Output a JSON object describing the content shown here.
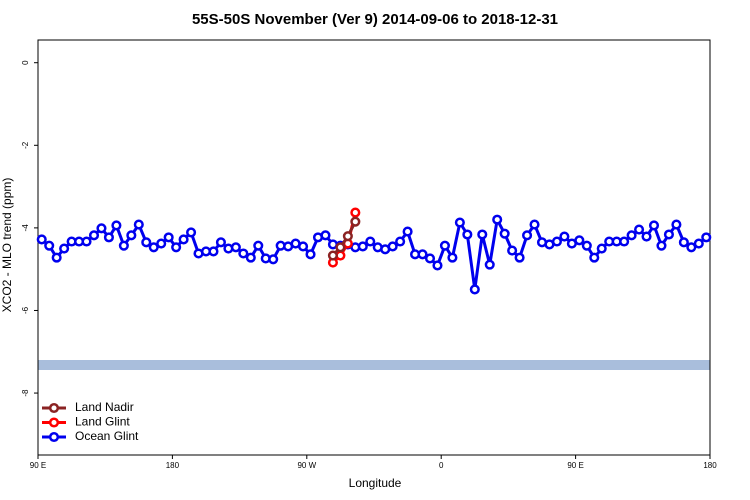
{
  "chart_data": {
    "type": "line",
    "title": "55S-50S November (Ver 9)   2014-09-06 to 2018-12-31",
    "x_label": "Longitude",
    "y_label": "XCO2 - MLO trend (ppm)",
    "xlim": [
      90,
      540
    ],
    "xticks": [
      {
        "value": 90,
        "label": "90 E"
      },
      {
        "value": 180,
        "label": "180"
      },
      {
        "value": 270,
        "label": "90 W"
      },
      {
        "value": 360,
        "label": "0"
      },
      {
        "value": 450,
        "label": "90 E"
      },
      {
        "value": 540,
        "label": "180"
      }
    ],
    "ylim": [
      -9.5,
      0.55
    ],
    "yticks": [
      0,
      -2,
      -4,
      -6,
      -8
    ],
    "legend": "bottom-left",
    "series": [
      {
        "name": "Land Nadir",
        "color": "#8b2323",
        "x": [
          287.5,
          292.5,
          297.5,
          302.5
        ],
        "values": [
          -4.67,
          -4.47,
          -4.2,
          -3.85
        ]
      },
      {
        "name": "Land Glint",
        "color": "#ff0000",
        "x": [
          287.5,
          292.5,
          297.5,
          302.5
        ],
        "values": [
          -4.84,
          -4.67,
          -4.38,
          -3.63
        ]
      },
      {
        "name": "Ocean Glint",
        "color": "#0000ee",
        "x": [
          92.5,
          97.5,
          102.5,
          107.5,
          112.5,
          117.5,
          122.5,
          127.5,
          132.5,
          137.5,
          142.5,
          147.5,
          152.5,
          157.5,
          162.5,
          167.5,
          172.5,
          177.5,
          182.5,
          187.5,
          192.5,
          197.5,
          202.5,
          207.5,
          212.5,
          217.5,
          222.5,
          227.5,
          232.5,
          237.5,
          242.5,
          247.5,
          252.5,
          257.5,
          262.5,
          267.5,
          272.5,
          277.5,
          282.5,
          287.5,
          292.5,
          297.5,
          302.5,
          307.5,
          312.5,
          317.5,
          322.5,
          327.5,
          332.5,
          337.5,
          342.5,
          347.5,
          352.5,
          357.5,
          362.5,
          367.5,
          372.5,
          377.5,
          382.5,
          387.5,
          392.5,
          397.5,
          402.5,
          407.5,
          412.5,
          417.5,
          422.5,
          427.5,
          432.5,
          437.5,
          442.5,
          447.5,
          452.5,
          457.5,
          462.5,
          467.5,
          472.5,
          477.5,
          482.5,
          487.5,
          492.5,
          497.5,
          502.5,
          507.5,
          512.5,
          517.5,
          522.5,
          527.5,
          532.5,
          537.5
        ],
        "values": [
          -4.28,
          -4.43,
          -4.72,
          -4.5,
          -4.33,
          -4.33,
          -4.33,
          -4.18,
          -4.01,
          -4.23,
          -3.94,
          -4.43,
          -4.18,
          -3.92,
          -4.35,
          -4.47,
          -4.38,
          -4.23,
          -4.47,
          -4.28,
          -4.11,
          -4.62,
          -4.57,
          -4.57,
          -4.35,
          -4.5,
          -4.47,
          -4.62,
          -4.72,
          -4.43,
          -4.74,
          -4.76,
          -4.43,
          -4.45,
          -4.38,
          -4.45,
          -4.64,
          -4.23,
          -4.18,
          -4.4,
          -4.43,
          -4.4,
          -4.47,
          -4.45,
          -4.33,
          -4.47,
          -4.52,
          -4.45,
          -4.33,
          -4.09,
          -4.64,
          -4.64,
          -4.74,
          -4.91,
          -4.43,
          -4.72,
          -3.87,
          -4.16,
          -5.49,
          -4.16,
          -4.89,
          -3.8,
          -4.14,
          -4.55,
          -4.72,
          -4.18,
          -3.92,
          -4.35,
          -4.4,
          -4.33,
          -4.21,
          -4.38,
          -4.3,
          -4.43,
          -4.72,
          -4.5,
          -4.33,
          -4.33,
          -4.33,
          -4.18,
          -4.04,
          -4.21,
          -3.94,
          -4.43,
          -4.16,
          -3.92,
          -4.35,
          -4.47,
          -4.38,
          -4.23
        ]
      }
    ]
  }
}
